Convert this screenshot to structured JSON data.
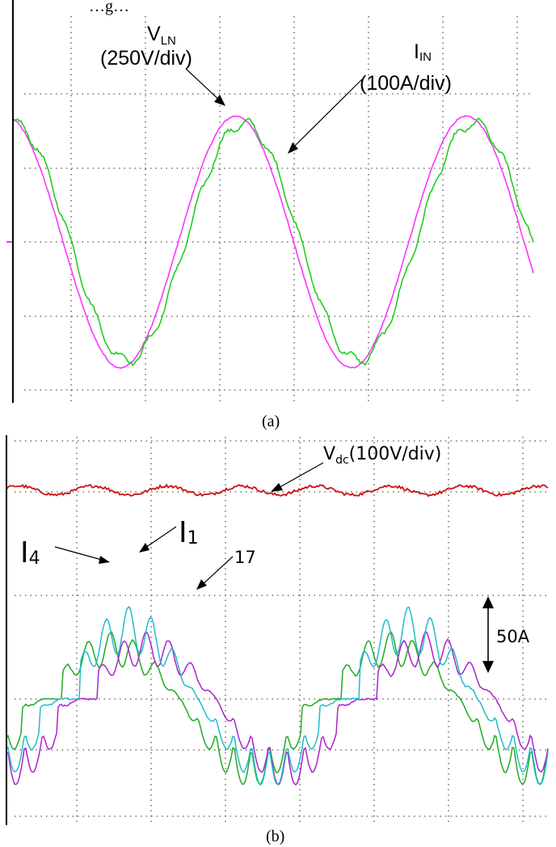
{
  "top_caption": "…g…",
  "panels": [
    {
      "caption": "(a)",
      "annotations": {
        "vln_main": "V",
        "vln_sub": "LN",
        "vln_scale": "(250V/div)",
        "iin_main": "I",
        "iin_sub": "IN",
        "iin_scale": "(100A/div)"
      }
    },
    {
      "caption": "(b)",
      "annotations": {
        "vdc_main": "V",
        "vdc_sub": "dc",
        "vdc_scale": "(100V/div)",
        "i1_main": "I",
        "i1_sub": "1",
        "i4_main": "I",
        "i4_sub": "4",
        "i7_label": "17",
        "scale_50a": "50A"
      }
    }
  ],
  "chart_data": [
    {
      "type": "line",
      "title": "",
      "xlabel": "",
      "ylabel": "",
      "grid": true,
      "x_range_div": [
        0,
        7.2
      ],
      "y_range_div": [
        -3.5,
        3.5
      ],
      "series": [
        {
          "name": "VLN",
          "color": "#ff33ff",
          "unit_per_div": "250V",
          "amplitude_div": 1.7,
          "period_div": 3.1,
          "phase_div": 3.0,
          "noise_div": 0.02
        },
        {
          "name": "IIN",
          "color": "#22cc22",
          "unit_per_div": "100A",
          "amplitude_div": 1.6,
          "period_div": 3.1,
          "phase_div": 3.18,
          "noise_div": 0.07
        }
      ]
    },
    {
      "type": "line",
      "title": "",
      "xlabel": "",
      "ylabel": "",
      "grid": true,
      "x_range_div": [
        0,
        7.2
      ],
      "y_range_div": [
        -2.1,
        4.0
      ],
      "series": [
        {
          "name": "Vdc",
          "color": "#cc1111",
          "unit_per_div": "100V",
          "level_div": 2.8,
          "ripple_div": 0.06
        },
        {
          "name": "I1",
          "color": "#22bbcc",
          "unit_per_div": "50A",
          "peak_div": 1.8,
          "phase_div": 0.0
        },
        {
          "name": "I4",
          "color": "#22aa22",
          "unit_per_div": "50A",
          "peak_div": 1.3,
          "phase_div": -0.2
        },
        {
          "name": "I7",
          "color": "#aa22cc",
          "unit_per_div": "50A",
          "peak_div": 1.3,
          "phase_div": 0.2
        }
      ]
    }
  ]
}
